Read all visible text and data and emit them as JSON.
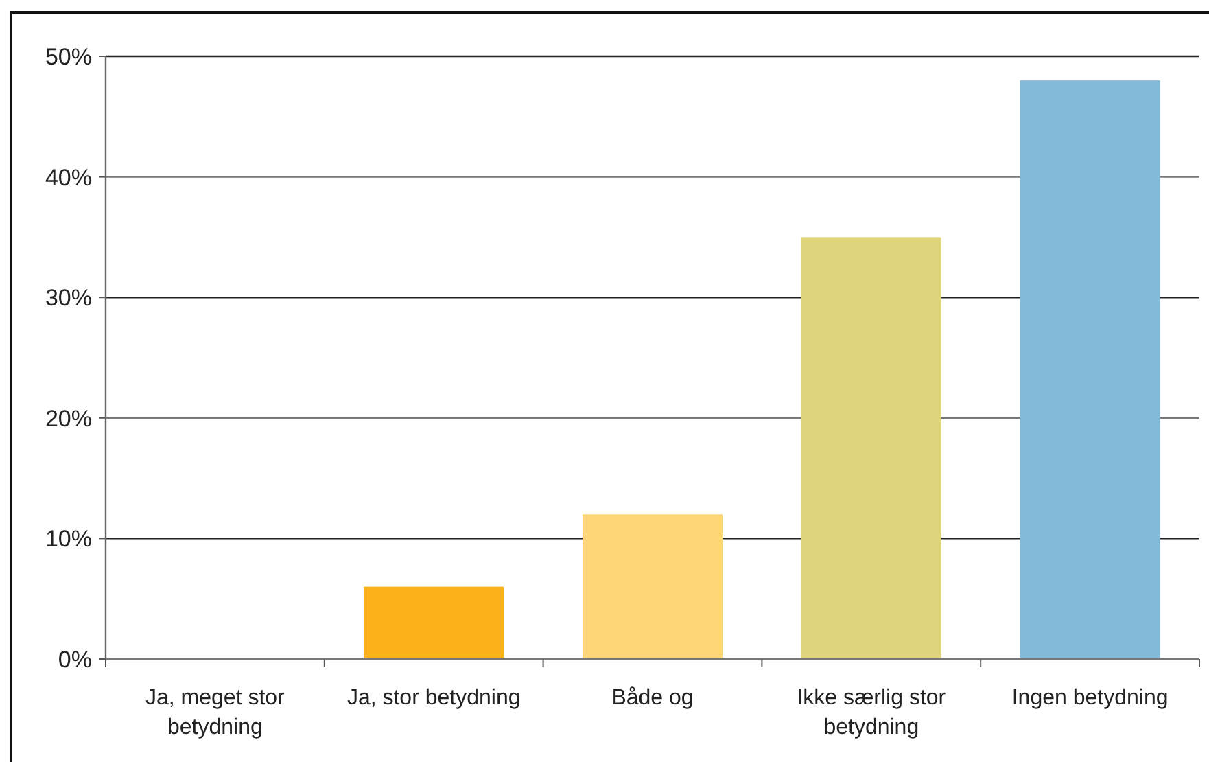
{
  "chart_data": {
    "type": "bar",
    "categories": [
      "Ja, meget stor betydning",
      "Ja, stor betydning",
      "Både og",
      "Ikke særlig stor betydning",
      "Ingen betydning"
    ],
    "values": [
      0,
      6,
      12,
      35,
      48
    ],
    "colors": [
      "#f6a800",
      "#fbb21a",
      "#fed678",
      "#dfd37c",
      "#83bad9"
    ],
    "ylim": [
      0,
      50
    ],
    "yticks": [
      {
        "value": 0,
        "label": "0%"
      },
      {
        "value": 10,
        "label": "10%"
      },
      {
        "value": 20,
        "label": "20%"
      },
      {
        "value": 30,
        "label": "30%"
      },
      {
        "value": 40,
        "label": "40%"
      },
      {
        "value": 50,
        "label": "50%"
      }
    ],
    "grid": "y"
  }
}
